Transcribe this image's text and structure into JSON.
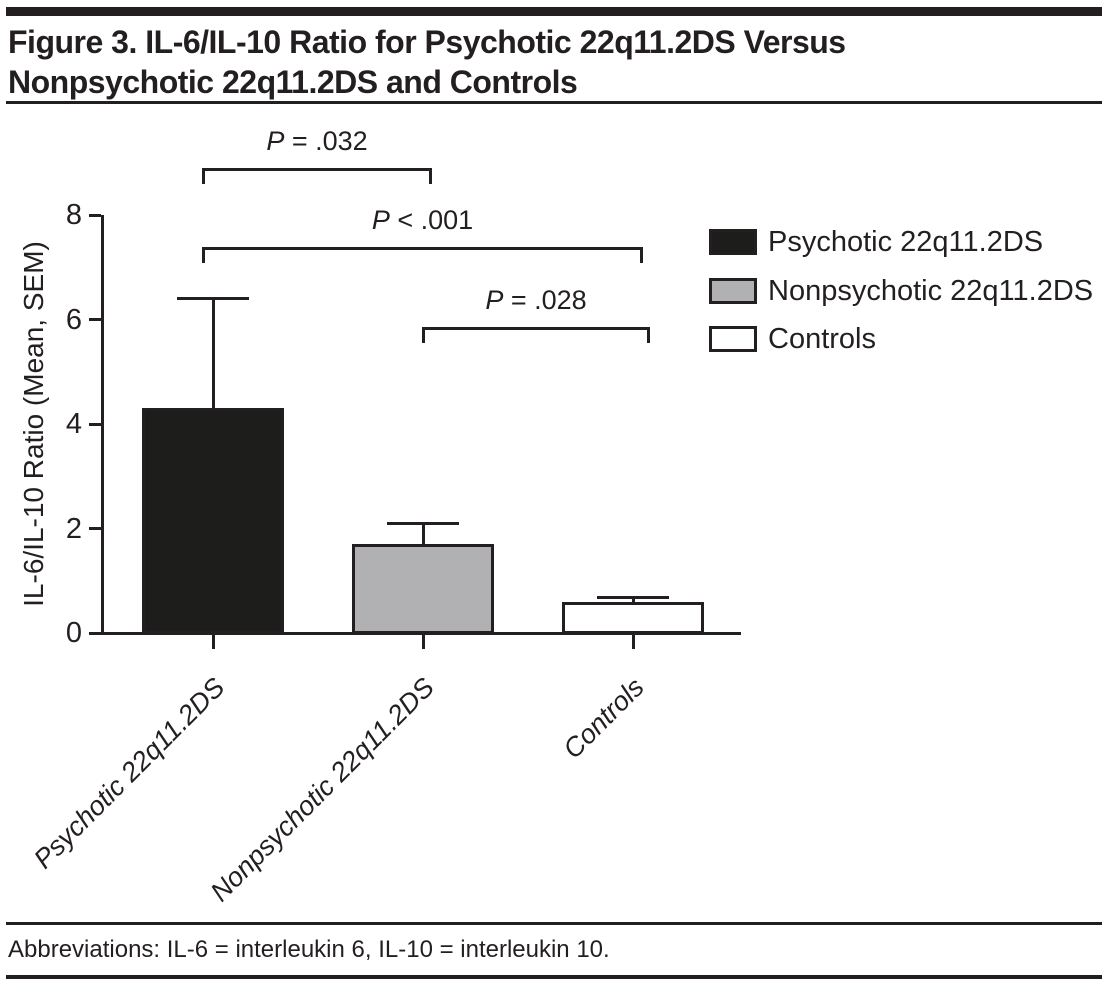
{
  "colors": {
    "ink": "#231f20",
    "bar_black": "#1d1d1b",
    "bar_gray": "#b1b1b3",
    "bar_white": "#ffffff"
  },
  "header": {
    "title_line1": "Figure 3. IL-6/IL-10 Ratio for Psychotic 22q11.2DS Versus",
    "title_line2": "Nonpsychotic 22q11.2DS and Controls"
  },
  "chart_data": {
    "type": "bar",
    "categories": [
      "Psychotic 22q11.2DS",
      "Nonpsychotic 22q11.2DS",
      "Controls"
    ],
    "values": [
      4.3,
      1.7,
      0.6
    ],
    "sem_upper": [
      2.1,
      0.4,
      0.07
    ],
    "title": "",
    "xlabel": "",
    "ylabel": "IL-6/IL-10 Ratio (Mean, SEM)",
    "ylim": [
      0,
      8
    ],
    "yticks": [
      0,
      2,
      4,
      6,
      8
    ],
    "grid": false,
    "bar_colors": [
      "#1d1d1b",
      "#b1b1b3",
      "#ffffff"
    ],
    "legend_position": "right",
    "legend": [
      {
        "label": "Psychotic 22q11.2DS",
        "color": "#1d1d1b"
      },
      {
        "label": "Nonpsychotic 22q11.2DS",
        "color": "#b1b1b3"
      },
      {
        "label": "Controls",
        "color": "#ffffff"
      }
    ],
    "annotations": [
      {
        "label": "P = .032",
        "between": [
          0,
          1
        ]
      },
      {
        "label": "P < .001",
        "between": [
          0,
          2
        ]
      },
      {
        "label": "P = .028",
        "between": [
          1,
          2
        ]
      }
    ]
  },
  "footer": {
    "abbreviations": "Abbreviations: IL-6 = interleukin 6, IL-10 = interleukin 10."
  }
}
